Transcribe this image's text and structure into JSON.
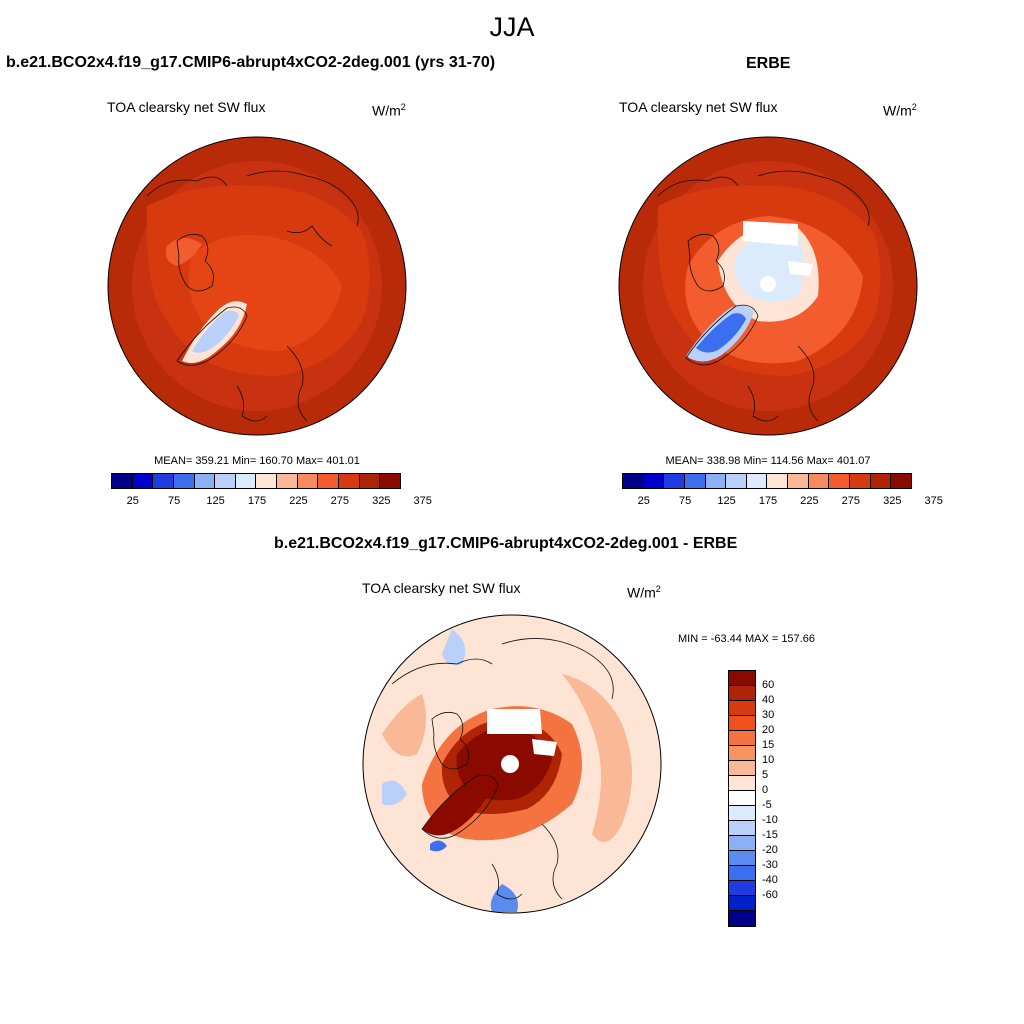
{
  "main_title": "JJA",
  "panels": [
    {
      "title": "b.e21.BCO2x4.f19_g17.CMIP6-abrupt4xCO2-2deg.001 (yrs 31-70)",
      "variable": "TOA clearsky net SW flux",
      "units_base": "W/m",
      "units_exp": "2",
      "stats": "MEAN= 359.21  Min= 160.70  Max= 401.01"
    },
    {
      "title": "ERBE",
      "variable": "TOA clearsky net SW flux",
      "units_base": "W/m",
      "units_exp": "2",
      "stats": "MEAN= 338.98  Min= 114.56  Max= 401.07"
    },
    {
      "title": "b.e21.BCO2x4.f19_g17.CMIP6-abrupt4xCO2-2deg.001 - ERBE",
      "variable": "TOA clearsky net SW flux",
      "units_base": "W/m",
      "units_exp": "2",
      "stats": "MIN = -63.44 MAX = 157.66"
    }
  ],
  "colorbar_abs": {
    "colors": [
      "#00008b",
      "#0000cd",
      "#1e3ce0",
      "#3c6ef0",
      "#8cb0f5",
      "#b8d0fa",
      "#dcebfc",
      "#fde4d4",
      "#fbb896",
      "#f78a5e",
      "#f25c2e",
      "#d83a10",
      "#b02406",
      "#8b0a00"
    ],
    "labels": [
      "25",
      "75",
      "125",
      "175",
      "225",
      "275",
      "325",
      "375"
    ]
  },
  "colorbar_diff": {
    "colors": [
      "#8b0a00",
      "#b02406",
      "#d83a10",
      "#f0501c",
      "#f57340",
      "#f7935f",
      "#f9b896",
      "#fde4d4",
      "#ffffff",
      "#dcebfc",
      "#b8d0fa",
      "#8cb0f5",
      "#5a8cf0",
      "#3c6ef0",
      "#1e3ce0",
      "#0020c8",
      "#00008b"
    ],
    "labels": [
      "60",
      "40",
      "30",
      "20",
      "15",
      "10",
      "5",
      "0",
      "-5",
      "-10",
      "-15",
      "-20",
      "-30",
      "-40",
      "-60"
    ]
  }
}
